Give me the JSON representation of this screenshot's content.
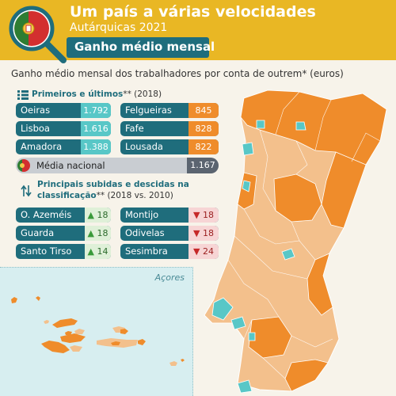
{
  "header": {
    "title": "Um país a várias velocidades",
    "subtitle": "Autárquicas 2021",
    "section": "Ganho médio mensal"
  },
  "description": "Ganho médio mensal dos trabalhadores por conta de outrem* (euros)",
  "ranking": {
    "heading_bold": "Primeiros e últimos",
    "heading_rest": "** (2018)",
    "top": [
      {
        "name": "Oeiras",
        "value": "1.792"
      },
      {
        "name": "Lisboa",
        "value": "1.616"
      },
      {
        "name": "Amadora",
        "value": "1.388"
      }
    ],
    "bottom": [
      {
        "name": "Felgueiras",
        "value": "845"
      },
      {
        "name": "Fafe",
        "value": "828"
      },
      {
        "name": "Lousada",
        "value": "822"
      }
    ],
    "national_label": "Média nacional",
    "national_value": "1.167"
  },
  "changes": {
    "heading_bold_1": "Principais subidas e descidas na",
    "heading_bold_2": "classificação",
    "heading_rest": "** (2018 vs. 2010)",
    "up": [
      {
        "name": "O. Azeméis",
        "value": "18"
      },
      {
        "name": "Guarda",
        "value": "18"
      },
      {
        "name": "Santo Tirso",
        "value": "14"
      }
    ],
    "down": [
      {
        "name": "Montijo",
        "value": "18"
      },
      {
        "name": "Odivelas",
        "value": "18"
      },
      {
        "name": "Sesimbra",
        "value": "24"
      }
    ]
  },
  "inset": {
    "label": "Açores"
  },
  "colors": {
    "header": "#e9b724",
    "teal_dark": "#1f6d7c",
    "teal_light": "#58c7c7",
    "orange": "#ef8c2b",
    "peach": "#f3c08c",
    "sea": "#d7eef0"
  }
}
